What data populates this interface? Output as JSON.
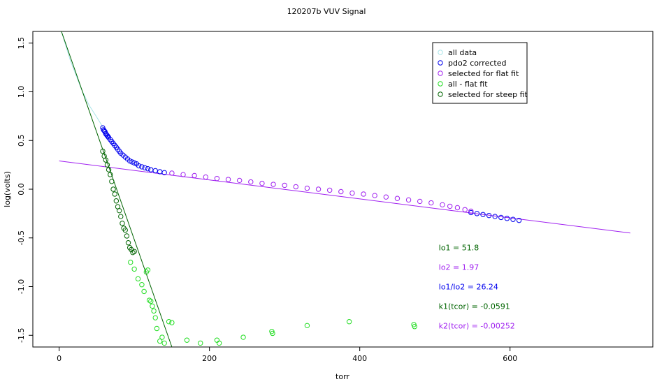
{
  "chart_data": {
    "type": "scatter",
    "title": "120207b   VUV Signal",
    "xlabel": "torr",
    "ylabel": "log(volts)",
    "xlim": [
      -35,
      790
    ],
    "ylim": [
      -1.62,
      1.62
    ],
    "x_ticks": [
      0,
      200,
      400,
      600
    ],
    "x_tick_labels": [
      "0",
      "200",
      "400",
      "600"
    ],
    "y_ticks": [
      -1.5,
      -1.0,
      -0.5,
      0.0,
      0.5,
      1.0,
      1.5
    ],
    "y_tick_labels": [
      "-1.5",
      "-1.0",
      "-0.5",
      "0.0",
      "0.5",
      "1.0",
      "1.5"
    ],
    "grid": false,
    "legend_position": "top-right",
    "legend": [
      {
        "label": "all data",
        "color": "#a8e4e8"
      },
      {
        "label": "pdo2 corrected",
        "color": "#0000ee"
      },
      {
        "label": "selected for flat fit",
        "color": "#a020f0"
      },
      {
        "label": "all - flat fit",
        "color": "#22dd22"
      },
      {
        "label": "selected for steep fit",
        "color": "#006400"
      }
    ],
    "lines": [
      {
        "name": "flat fit",
        "color": "#a020f0",
        "x": [
          0,
          760
        ],
        "y": [
          0.29,
          -0.45
        ]
      },
      {
        "name": "steep fit",
        "color": "#006400",
        "x": [
          3,
          150
        ],
        "y": [
          1.62,
          -1.62
        ]
      }
    ],
    "all_data_curve": {
      "color": "#a8e4e8",
      "x": [
        3,
        15,
        30,
        40,
        50,
        58
      ],
      "y": [
        1.62,
        1.32,
        1.02,
        0.86,
        0.74,
        0.64
      ]
    },
    "series": [
      {
        "name": "pdo2 corrected",
        "color": "#0000ee",
        "x": [
          58,
          59,
          60,
          61,
          62,
          63,
          64,
          65,
          66,
          68,
          70,
          72,
          74,
          76,
          78,
          80,
          82,
          85,
          88,
          91,
          94,
          97,
          100,
          103,
          106,
          110,
          114,
          118,
          122,
          128,
          134,
          140,
          548,
          556,
          564,
          572,
          580,
          588,
          596,
          604,
          612
        ],
        "y": [
          0.63,
          0.61,
          0.6,
          0.59,
          0.57,
          0.56,
          0.55,
          0.54,
          0.53,
          0.51,
          0.49,
          0.47,
          0.45,
          0.43,
          0.41,
          0.39,
          0.37,
          0.35,
          0.33,
          0.31,
          0.29,
          0.28,
          0.27,
          0.26,
          0.24,
          0.23,
          0.22,
          0.21,
          0.2,
          0.19,
          0.18,
          0.17,
          -0.24,
          -0.25,
          -0.26,
          -0.27,
          -0.28,
          -0.29,
          -0.3,
          -0.31,
          -0.32
        ]
      },
      {
        "name": "selected for flat fit",
        "color": "#a020f0",
        "x": [
          150,
          165,
          180,
          195,
          210,
          225,
          240,
          255,
          270,
          285,
          300,
          315,
          330,
          345,
          360,
          375,
          390,
          405,
          420,
          435,
          450,
          465,
          480,
          495,
          510,
          520,
          530,
          540,
          548
        ],
        "y": [
          0.165,
          0.15,
          0.14,
          0.125,
          0.11,
          0.1,
          0.09,
          0.075,
          0.06,
          0.05,
          0.04,
          0.025,
          0.01,
          0.0,
          -0.01,
          -0.025,
          -0.04,
          -0.05,
          -0.065,
          -0.08,
          -0.095,
          -0.11,
          -0.125,
          -0.14,
          -0.16,
          -0.175,
          -0.19,
          -0.21,
          -0.225
        ]
      },
      {
        "name": "all - flat fit",
        "color": "#22dd22",
        "x": [
          95,
          100,
          105,
          110,
          113,
          116,
          118,
          120,
          122,
          124,
          126,
          128,
          130,
          134,
          137,
          140,
          146,
          150,
          170,
          188,
          210,
          213,
          245,
          283,
          284,
          330,
          386,
          472,
          473
        ],
        "y": [
          -0.75,
          -0.82,
          -0.92,
          -0.98,
          -1.05,
          -0.85,
          -0.83,
          -1.14,
          -1.15,
          -1.2,
          -1.25,
          -1.32,
          -1.43,
          -1.56,
          -1.52,
          -1.58,
          -1.36,
          -1.37,
          -1.55,
          -1.58,
          -1.55,
          -1.58,
          -1.52,
          -1.46,
          -1.48,
          -1.4,
          -1.36,
          -1.39,
          -1.41
        ]
      },
      {
        "name": "selected for steep fit",
        "color": "#006400",
        "x": [
          58,
          60,
          62,
          64,
          66,
          68,
          70,
          72,
          74,
          76,
          78,
          80,
          82,
          84,
          86,
          88,
          90,
          92,
          94,
          96,
          98,
          100
        ],
        "y": [
          0.39,
          0.34,
          0.3,
          0.25,
          0.2,
          0.15,
          0.08,
          0.0,
          -0.05,
          -0.12,
          -0.18,
          -0.22,
          -0.28,
          -0.35,
          -0.4,
          -0.42,
          -0.48,
          -0.55,
          -0.6,
          -0.62,
          -0.65,
          -0.64
        ]
      }
    ],
    "annotations": [
      {
        "text": "Io1 =  51.8",
        "color": "#006400",
        "x": 505,
        "y": -0.6
      },
      {
        "text": "Io2 =  1.97",
        "color": "#a020f0",
        "x": 505,
        "y": -0.8
      },
      {
        "text": "Io1/Io2 =  26.24",
        "color": "#0000ee",
        "x": 505,
        "y": -1.0
      },
      {
        "text": "k1(tcor) =  -0.0591",
        "color": "#006400",
        "x": 505,
        "y": -1.2
      },
      {
        "text": "k2(tcor) =  -0.00252",
        "color": "#a020f0",
        "x": 505,
        "y": -1.4
      }
    ]
  }
}
